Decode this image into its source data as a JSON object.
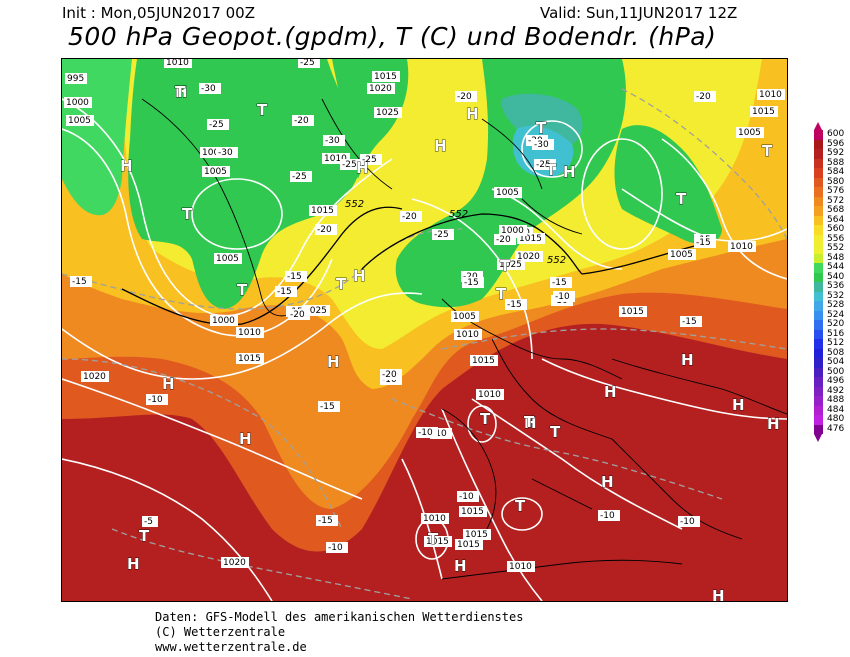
{
  "header": {
    "init": "Init : Mon,05JUN2017 00Z",
    "valid": "Valid: Sun,11JUN2017 12Z",
    "title": "500 hPa Geopot.(gpdm), T (C) und Bodendr. (hPa)"
  },
  "colorbar": {
    "labels": [
      "600",
      "596",
      "592",
      "588",
      "584",
      "580",
      "576",
      "572",
      "568",
      "564",
      "560",
      "556",
      "552",
      "548",
      "544",
      "540",
      "536",
      "532",
      "528",
      "524",
      "520",
      "516",
      "512",
      "508",
      "504",
      "500",
      "496",
      "492",
      "488",
      "484",
      "480",
      "476"
    ],
    "colors": [
      "#c00060",
      "#a81818",
      "#b42020",
      "#c83020",
      "#d84020",
      "#e05a20",
      "#e87020",
      "#ee8a20",
      "#f4a020",
      "#f8c020",
      "#f8dc28",
      "#f4ec30",
      "#ecf030",
      "#c8ee30",
      "#40d860",
      "#30c850",
      "#40b8a0",
      "#40c0d0",
      "#40a8e8",
      "#3890f0",
      "#3070f0",
      "#2850f0",
      "#2030e8",
      "#2020d8",
      "#3020c8",
      "#4c20c0",
      "#6820c0",
      "#8020c0",
      "#9820c8",
      "#b020d0",
      "#c020e0",
      "#800090"
    ]
  },
  "map": {
    "pressure_labels": [
      "995",
      "1000",
      "1005",
      "1010",
      "1015",
      "1020",
      "1025",
      "1000",
      "1005",
      "1010",
      "1015",
      "1020",
      "1025",
      "1005",
      "1000",
      "1010",
      "1015",
      "1005",
      "1010",
      "1015",
      "1020",
      "1025",
      "1010",
      "1015",
      "1015",
      "1005",
      "1000",
      "1010",
      "1015",
      "1010",
      "1010",
      "1005",
      "1010",
      "1005",
      "1015",
      "1015",
      "1010",
      "1015",
      "1015",
      "1020"
    ],
    "temp_labels": [
      "-30",
      "-25",
      "-30",
      "-25",
      "-20",
      "-20",
      "-30",
      "-25",
      "-25",
      "-20",
      "-20",
      "-15",
      "-15",
      "-15",
      "-15",
      "-20",
      "-25",
      "-20",
      "-15",
      "-10",
      "-15",
      "-10",
      "-10",
      "-5",
      "-10",
      "-15",
      "-10",
      "-10",
      "-10",
      "-10",
      "-10",
      "-15",
      "-10",
      "-20",
      "-15",
      "-20",
      "-15",
      "-15",
      "-15",
      "-20",
      "-25",
      "-30",
      "-25",
      "-20"
    ],
    "geopot_labels": [
      "552",
      "552",
      "552"
    ],
    "centres_h": [
      "H",
      "H",
      "H",
      "H",
      "H",
      "H",
      "H",
      "H",
      "H",
      "H",
      "H",
      "H",
      "H",
      "H",
      "H",
      "H",
      "H",
      "H",
      "H"
    ],
    "centres_t": [
      "T",
      "T",
      "T",
      "T",
      "T",
      "T",
      "T",
      "T",
      "T",
      "T",
      "T",
      "T",
      "T",
      "T",
      "T",
      "T",
      "T"
    ]
  },
  "footer": {
    "line1": "Daten: GFS-Modell des amerikanischen Wetterdienstes",
    "line2": "(C) Wetterzentrale",
    "line3": "www.wetterzentrale.de"
  }
}
